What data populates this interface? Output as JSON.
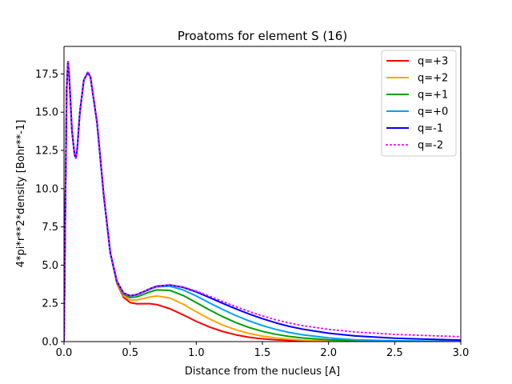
{
  "chart_data": {
    "type": "line",
    "title": "Proatoms for element S (16)",
    "xlabel": "Distance from the nucleus [A]",
    "ylabel": "4*pi*r**2*density [Bohr**-1]",
    "xlim": [
      0.0,
      3.0
    ],
    "ylim": [
      0.0,
      19.3
    ],
    "xticks": [
      "0.0",
      "0.5",
      "1.0",
      "1.5",
      "2.0",
      "2.5",
      "3.0"
    ],
    "yticks": [
      "0.0",
      "2.5",
      "5.0",
      "7.5",
      "10.0",
      "12.5",
      "15.0",
      "17.5"
    ],
    "grid": false,
    "legend_position": "top-right",
    "series": [
      {
        "name": "q=+3",
        "color": "#ff0000",
        "style": "solid",
        "x": [
          0.0,
          0.01,
          0.02,
          0.03,
          0.04,
          0.06,
          0.08,
          0.09,
          0.1,
          0.12,
          0.15,
          0.18,
          0.2,
          0.25,
          0.3,
          0.35,
          0.4,
          0.45,
          0.5,
          0.55,
          0.6,
          0.65,
          0.7,
          0.8,
          0.9,
          1.0,
          1.1,
          1.2,
          1.3,
          1.4,
          1.5,
          1.6,
          1.7,
          1.8,
          2.0,
          2.2,
          2.5,
          3.0
        ],
        "y": [
          0.0,
          8.5,
          16.5,
          18.3,
          17.3,
          13.8,
          12.2,
          12.0,
          12.6,
          15.0,
          17.1,
          17.6,
          17.3,
          14.3,
          9.6,
          5.8,
          3.8,
          2.9,
          2.55,
          2.47,
          2.48,
          2.48,
          2.42,
          2.15,
          1.75,
          1.32,
          0.95,
          0.66,
          0.44,
          0.28,
          0.18,
          0.12,
          0.08,
          0.05,
          0.02,
          0.01,
          0.0,
          0.0
        ]
      },
      {
        "name": "q=+2",
        "color": "#ffa500",
        "style": "solid",
        "x": [
          0.0,
          0.01,
          0.02,
          0.03,
          0.04,
          0.06,
          0.08,
          0.09,
          0.1,
          0.12,
          0.15,
          0.18,
          0.2,
          0.25,
          0.3,
          0.35,
          0.4,
          0.45,
          0.5,
          0.55,
          0.6,
          0.65,
          0.7,
          0.8,
          0.9,
          1.0,
          1.1,
          1.2,
          1.3,
          1.4,
          1.5,
          1.6,
          1.7,
          1.8,
          2.0,
          2.2,
          2.5,
          3.0
        ],
        "y": [
          0.0,
          8.5,
          16.5,
          18.3,
          17.3,
          13.8,
          12.2,
          12.0,
          12.6,
          15.0,
          17.1,
          17.6,
          17.3,
          14.3,
          9.6,
          5.8,
          3.85,
          3.0,
          2.72,
          2.72,
          2.82,
          2.92,
          2.98,
          2.85,
          2.45,
          1.95,
          1.48,
          1.08,
          0.77,
          0.53,
          0.36,
          0.24,
          0.16,
          0.1,
          0.04,
          0.02,
          0.0,
          0.0
        ]
      },
      {
        "name": "q=+1",
        "color": "#00a000",
        "style": "solid",
        "x": [
          0.0,
          0.01,
          0.02,
          0.03,
          0.04,
          0.06,
          0.08,
          0.09,
          0.1,
          0.12,
          0.15,
          0.18,
          0.2,
          0.25,
          0.3,
          0.35,
          0.4,
          0.45,
          0.5,
          0.55,
          0.6,
          0.65,
          0.7,
          0.8,
          0.9,
          1.0,
          1.1,
          1.2,
          1.3,
          1.4,
          1.5,
          1.6,
          1.7,
          1.8,
          2.0,
          2.2,
          2.5,
          3.0
        ],
        "y": [
          0.0,
          8.5,
          16.5,
          18.3,
          17.3,
          13.8,
          12.2,
          12.0,
          12.6,
          15.0,
          17.1,
          17.6,
          17.3,
          14.3,
          9.6,
          5.8,
          3.9,
          3.1,
          2.88,
          2.92,
          3.08,
          3.25,
          3.38,
          3.35,
          3.02,
          2.55,
          2.07,
          1.63,
          1.24,
          0.92,
          0.67,
          0.48,
          0.34,
          0.24,
          0.12,
          0.06,
          0.02,
          0.0
        ]
      },
      {
        "name": "q=+0",
        "color": "#00a0ff",
        "style": "solid",
        "x": [
          0.0,
          0.01,
          0.02,
          0.03,
          0.04,
          0.06,
          0.08,
          0.09,
          0.1,
          0.12,
          0.15,
          0.18,
          0.2,
          0.25,
          0.3,
          0.35,
          0.4,
          0.45,
          0.5,
          0.55,
          0.6,
          0.65,
          0.7,
          0.8,
          0.9,
          1.0,
          1.1,
          1.2,
          1.3,
          1.4,
          1.5,
          1.6,
          1.7,
          1.8,
          2.0,
          2.2,
          2.5,
          3.0
        ],
        "y": [
          0.0,
          8.5,
          16.5,
          18.3,
          17.3,
          13.8,
          12.2,
          12.0,
          12.6,
          15.0,
          17.1,
          17.6,
          17.3,
          14.3,
          9.6,
          5.8,
          3.95,
          3.15,
          2.98,
          3.05,
          3.23,
          3.42,
          3.58,
          3.62,
          3.38,
          2.98,
          2.53,
          2.1,
          1.7,
          1.35,
          1.05,
          0.8,
          0.6,
          0.45,
          0.24,
          0.12,
          0.05,
          0.01
        ]
      },
      {
        "name": "q=-1",
        "color": "#0000ff",
        "style": "solid",
        "x": [
          0.0,
          0.01,
          0.02,
          0.03,
          0.04,
          0.06,
          0.08,
          0.09,
          0.1,
          0.12,
          0.15,
          0.18,
          0.2,
          0.25,
          0.3,
          0.35,
          0.4,
          0.45,
          0.5,
          0.55,
          0.6,
          0.65,
          0.7,
          0.8,
          0.9,
          1.0,
          1.1,
          1.2,
          1.3,
          1.4,
          1.5,
          1.6,
          1.7,
          1.8,
          2.0,
          2.2,
          2.5,
          3.0
        ],
        "y": [
          0.0,
          8.5,
          16.5,
          18.3,
          17.3,
          13.8,
          12.2,
          12.0,
          12.6,
          15.0,
          17.1,
          17.6,
          17.3,
          14.3,
          9.6,
          5.8,
          3.95,
          3.18,
          3.0,
          3.08,
          3.26,
          3.46,
          3.62,
          3.7,
          3.55,
          3.25,
          2.88,
          2.5,
          2.14,
          1.8,
          1.5,
          1.23,
          1.0,
          0.82,
          0.55,
          0.37,
          0.22,
          0.1
        ]
      },
      {
        "name": "q=-2",
        "color": "#ff00ff",
        "style": "dotted",
        "x": [
          0.0,
          0.01,
          0.02,
          0.03,
          0.04,
          0.06,
          0.08,
          0.09,
          0.1,
          0.12,
          0.15,
          0.18,
          0.2,
          0.25,
          0.3,
          0.35,
          0.4,
          0.45,
          0.5,
          0.55,
          0.6,
          0.65,
          0.7,
          0.8,
          0.9,
          1.0,
          1.1,
          1.2,
          1.3,
          1.4,
          1.5,
          1.6,
          1.7,
          1.8,
          2.0,
          2.2,
          2.5,
          3.0
        ],
        "y": [
          0.0,
          8.5,
          16.5,
          18.3,
          17.3,
          13.8,
          12.2,
          12.0,
          12.6,
          15.0,
          17.1,
          17.6,
          17.3,
          14.3,
          9.6,
          5.8,
          3.95,
          3.18,
          3.0,
          3.08,
          3.26,
          3.46,
          3.62,
          3.7,
          3.57,
          3.3,
          2.97,
          2.62,
          2.28,
          1.97,
          1.68,
          1.43,
          1.22,
          1.05,
          0.8,
          0.63,
          0.47,
          0.32
        ]
      }
    ]
  }
}
